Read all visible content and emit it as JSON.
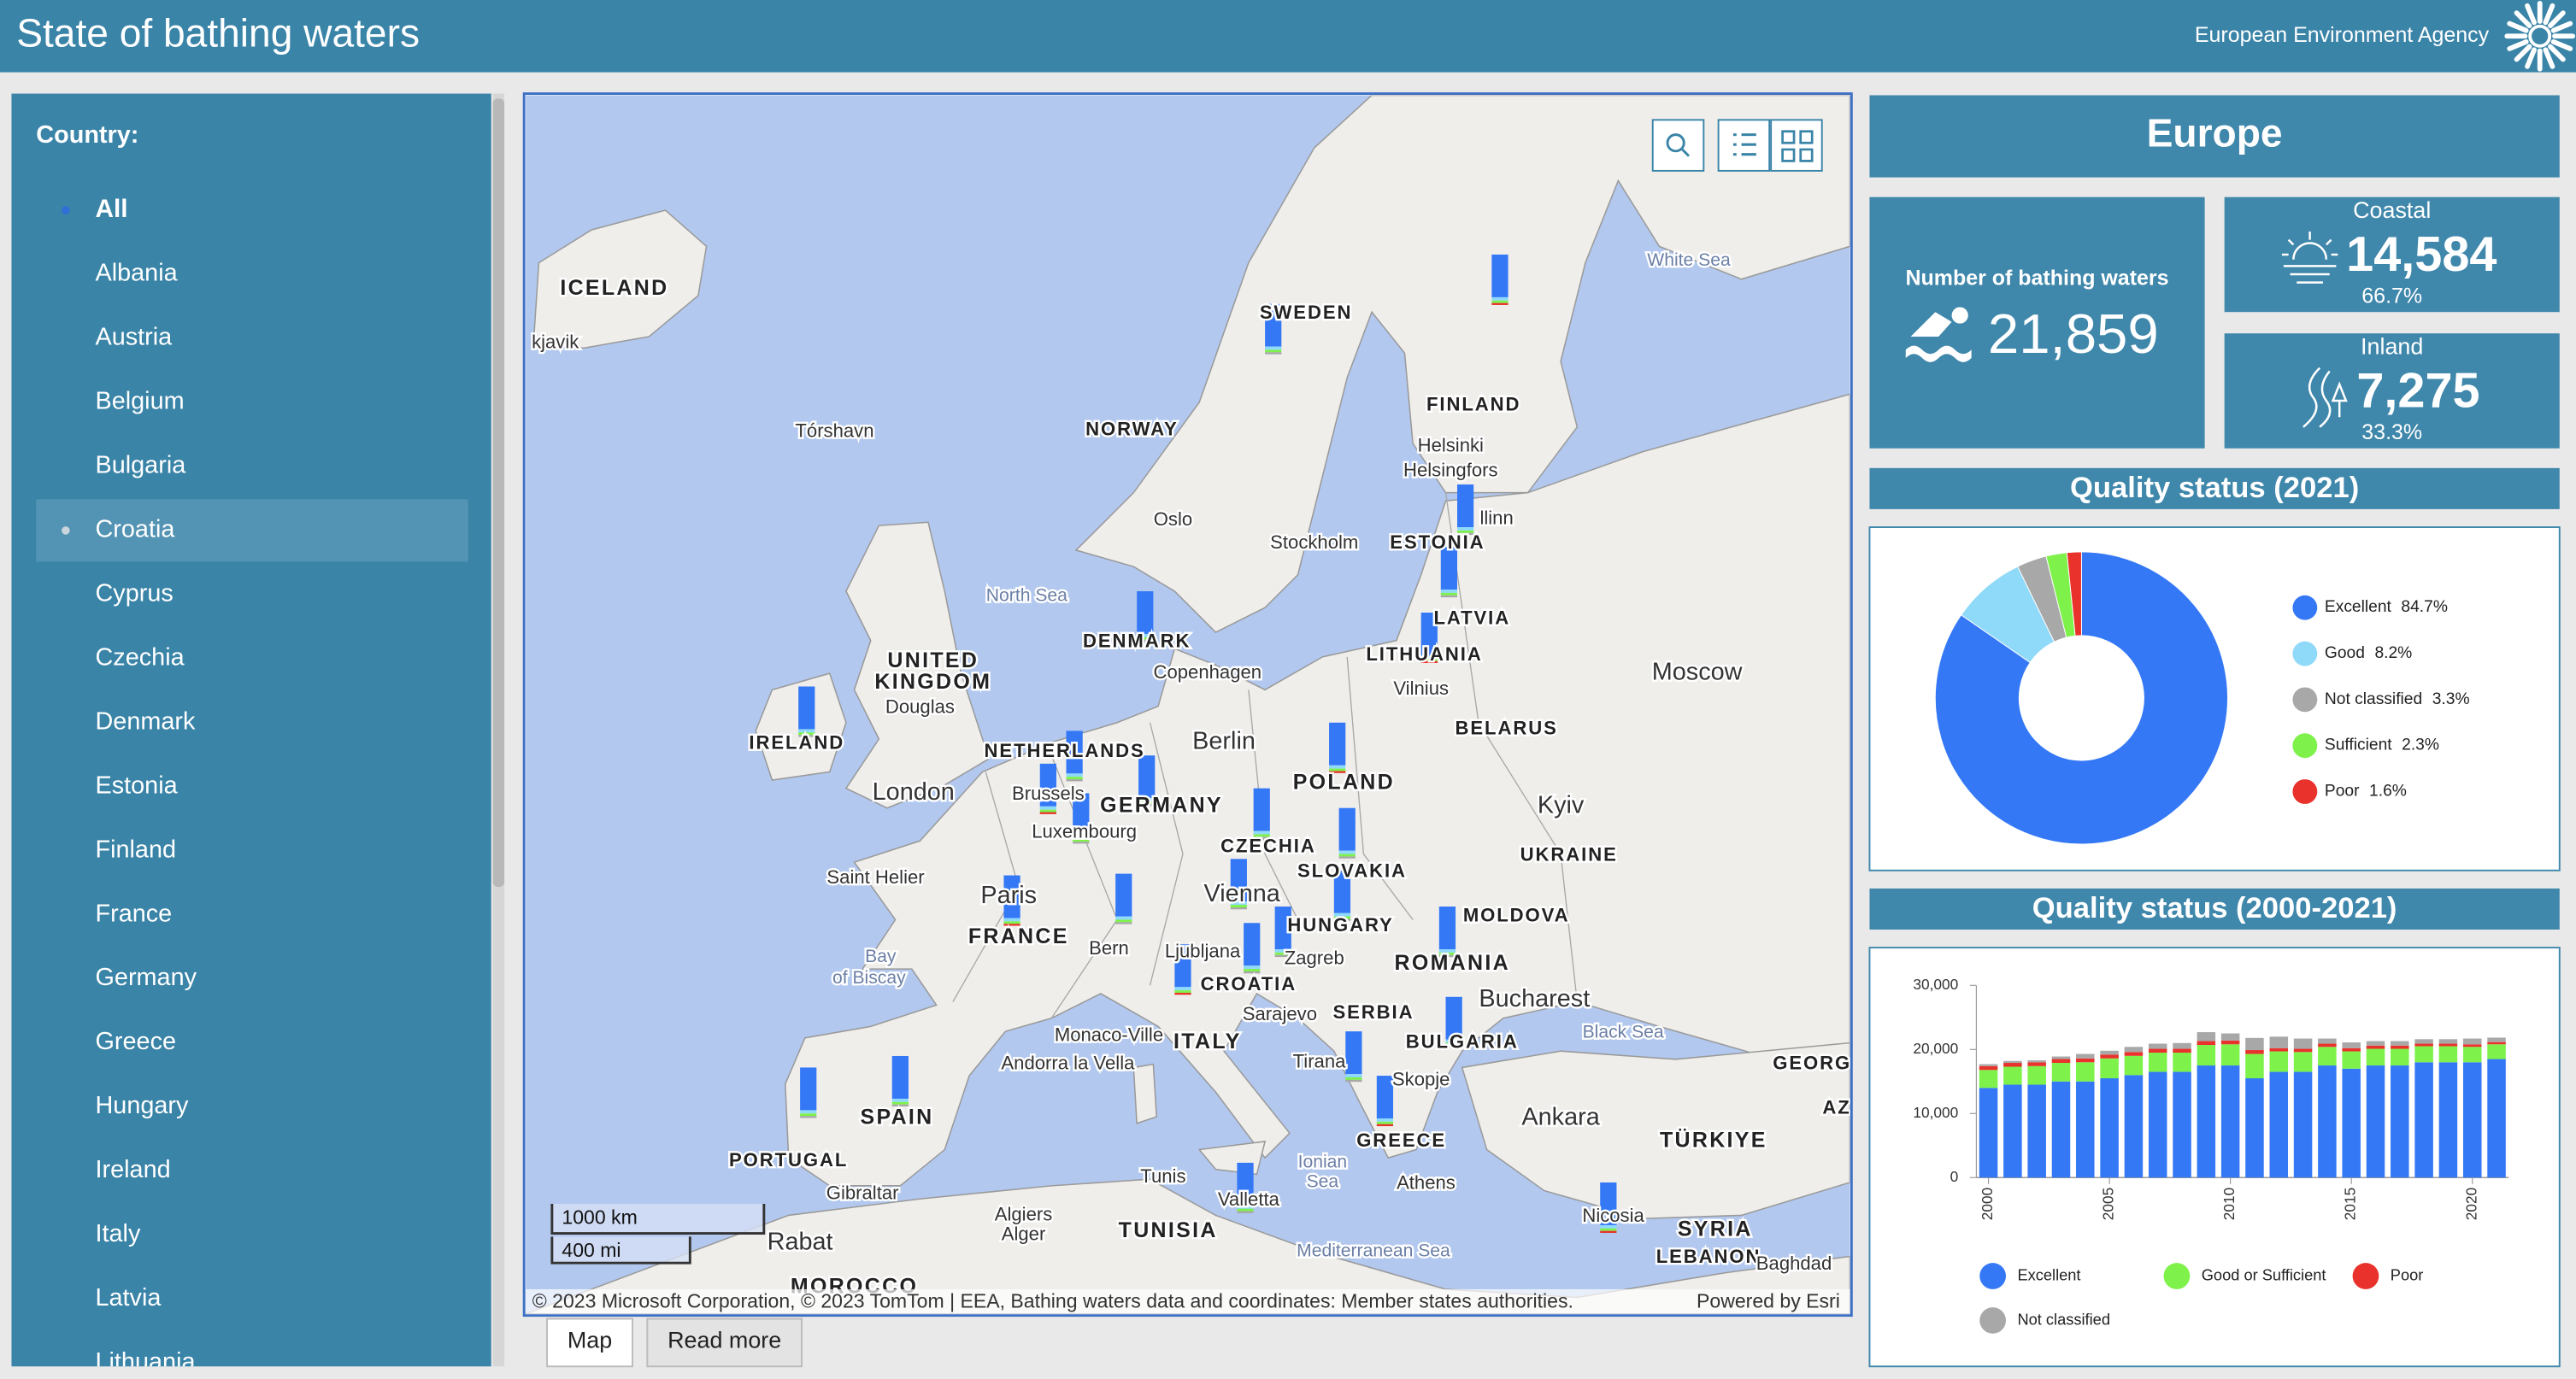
{
  "header": {
    "title": "State of bathing waters",
    "agency": "European Environment Agency"
  },
  "sidebar": {
    "label": "Country:",
    "countries": [
      "All",
      "Albania",
      "Austria",
      "Belgium",
      "Bulgaria",
      "Croatia",
      "Cyprus",
      "Czechia",
      "Denmark",
      "Estonia",
      "Finland",
      "France",
      "Germany",
      "Greece",
      "Hungary",
      "Ireland",
      "Italy",
      "Latvia",
      "Lithuania"
    ]
  },
  "map": {
    "labels": [
      "ICELAND",
      "kjavik",
      "Tórshavn",
      "NORWAY",
      "SWEDEN",
      "FINLAND",
      "White Sea",
      "Helsinki",
      "Helsingfors",
      "Oslo",
      "Stockholm",
      "ESTONIA",
      "llinn",
      "LATVIA",
      "LITHUANIA",
      "Vilnius",
      "North Sea",
      "DENMARK",
      "Copenhagen",
      "UNITED",
      "KINGDOM",
      "Douglas",
      "IRELAND",
      "London",
      "NETHERLANDS",
      "Brussels",
      "GERMANY",
      "Berlin",
      "POLAND",
      "BELARUS",
      "Moscow",
      "Kyiv",
      "UKRAINE",
      "Luxembourg",
      "Saint Helier",
      "Paris",
      "FRANCE",
      "CZECHIA",
      "SLOVAKIA",
      "Vienna",
      "HUNGARY",
      "MOLDOVA",
      "Bern",
      "Ljubljana",
      "Zagreb",
      "CROATIA",
      "ROMANIA",
      "Bay",
      "of Biscay",
      "Monaco-Ville",
      "Andorra la Vella",
      "ITALY",
      "Sarajevo",
      "SERBIA",
      "Bucharest",
      "Black Sea",
      "BULGARIA",
      "Tirana",
      "Skopje",
      "PORTUGAL",
      "SPAIN",
      "GREECE",
      "Gibraltar",
      "Rabat",
      "MOROCCO",
      "Algiers",
      "Alger",
      "Tunis",
      "TUNISIA",
      "Valletta",
      "Ionian",
      "Sea",
      "Athens",
      "Ankara",
      "TÜRKIYE",
      "Nicosia",
      "SYRIA",
      "LEBANON",
      "Baghdad",
      "Mediterranean Sea",
      "GEORG",
      "AZ"
    ],
    "scale": [
      "1000 km",
      "400 mi"
    ],
    "attribution": "© 2023 Microsoft Corporation, © 2023 TomTom | EEA, Bathing waters data and coordinates: Member states authorities.",
    "powered_by": "Powered by Esri"
  },
  "tabs": [
    "Map",
    "Read more"
  ],
  "summary": {
    "region": "Europe",
    "total_label": "Number of bathing waters",
    "total": "21,859",
    "coastal_label": "Coastal",
    "coastal": "14,584",
    "coastal_share": "66.7%",
    "inland_label": "Inland",
    "inland": "7,275",
    "inland_share": "33.3%"
  },
  "chart_data": [
    {
      "type": "pie",
      "title": "Quality status (2021)",
      "categories": [
        "Excellent",
        "Good",
        "Not classified",
        "Sufficient",
        "Poor"
      ],
      "values": [
        84.7,
        8.2,
        3.3,
        2.3,
        1.6
      ],
      "value_labels": [
        "84.7%",
        "8.2%",
        "3.3%",
        "2.3%",
        "1.6%"
      ],
      "colors": [
        "#3478f6",
        "#8fd9f9",
        "#a8a8a8",
        "#7ef24a",
        "#e8322b"
      ]
    },
    {
      "type": "bar",
      "stacked": true,
      "title": "Quality status (2000-2021)",
      "categories": [
        "2000",
        null,
        null,
        null,
        null,
        "2005",
        null,
        null,
        null,
        null,
        "2010",
        null,
        null,
        null,
        null,
        "2015",
        null,
        null,
        null,
        null,
        "2020",
        null
      ],
      "series": [
        {
          "name": "Excellent",
          "color": "#3478f6",
          "values": [
            14000,
            14500,
            14500,
            15000,
            15000,
            15500,
            16000,
            16500,
            16500,
            17500,
            17500,
            15500,
            16500,
            16500,
            17500,
            17000,
            17500,
            17500,
            18000,
            18000,
            18000,
            18500
          ]
        },
        {
          "name": "Good or Sufficient",
          "color": "#7ef24a",
          "values": [
            2800,
            2800,
            2900,
            2900,
            3000,
            3100,
            3000,
            3000,
            3000,
            3200,
            3300,
            3800,
            3200,
            3100,
            2900,
            2700,
            2600,
            2600,
            2500,
            2500,
            2400,
            2300
          ]
        },
        {
          "name": "Poor",
          "color": "#e8322b",
          "values": [
            600,
            600,
            600,
            600,
            600,
            600,
            600,
            600,
            600,
            600,
            600,
            600,
            500,
            500,
            500,
            500,
            500,
            500,
            400,
            400,
            400,
            350
          ]
        },
        {
          "name": "Not classified",
          "color": "#a8a8a8",
          "values": [
            300,
            300,
            300,
            400,
            700,
            600,
            800,
            800,
            900,
            1400,
            1100,
            1900,
            1800,
            1600,
            800,
            900,
            700,
            700,
            700,
            700,
            900,
            700
          ]
        }
      ],
      "ylim": [
        0,
        30000
      ],
      "yticks": [
        0,
        {
          "value": 10000,
          "label": "10,000"
        },
        {
          "value": 20000,
          "label": "20,000"
        },
        {
          "value": 30000,
          "label": "30,000"
        }
      ],
      "grid": false
    }
  ]
}
